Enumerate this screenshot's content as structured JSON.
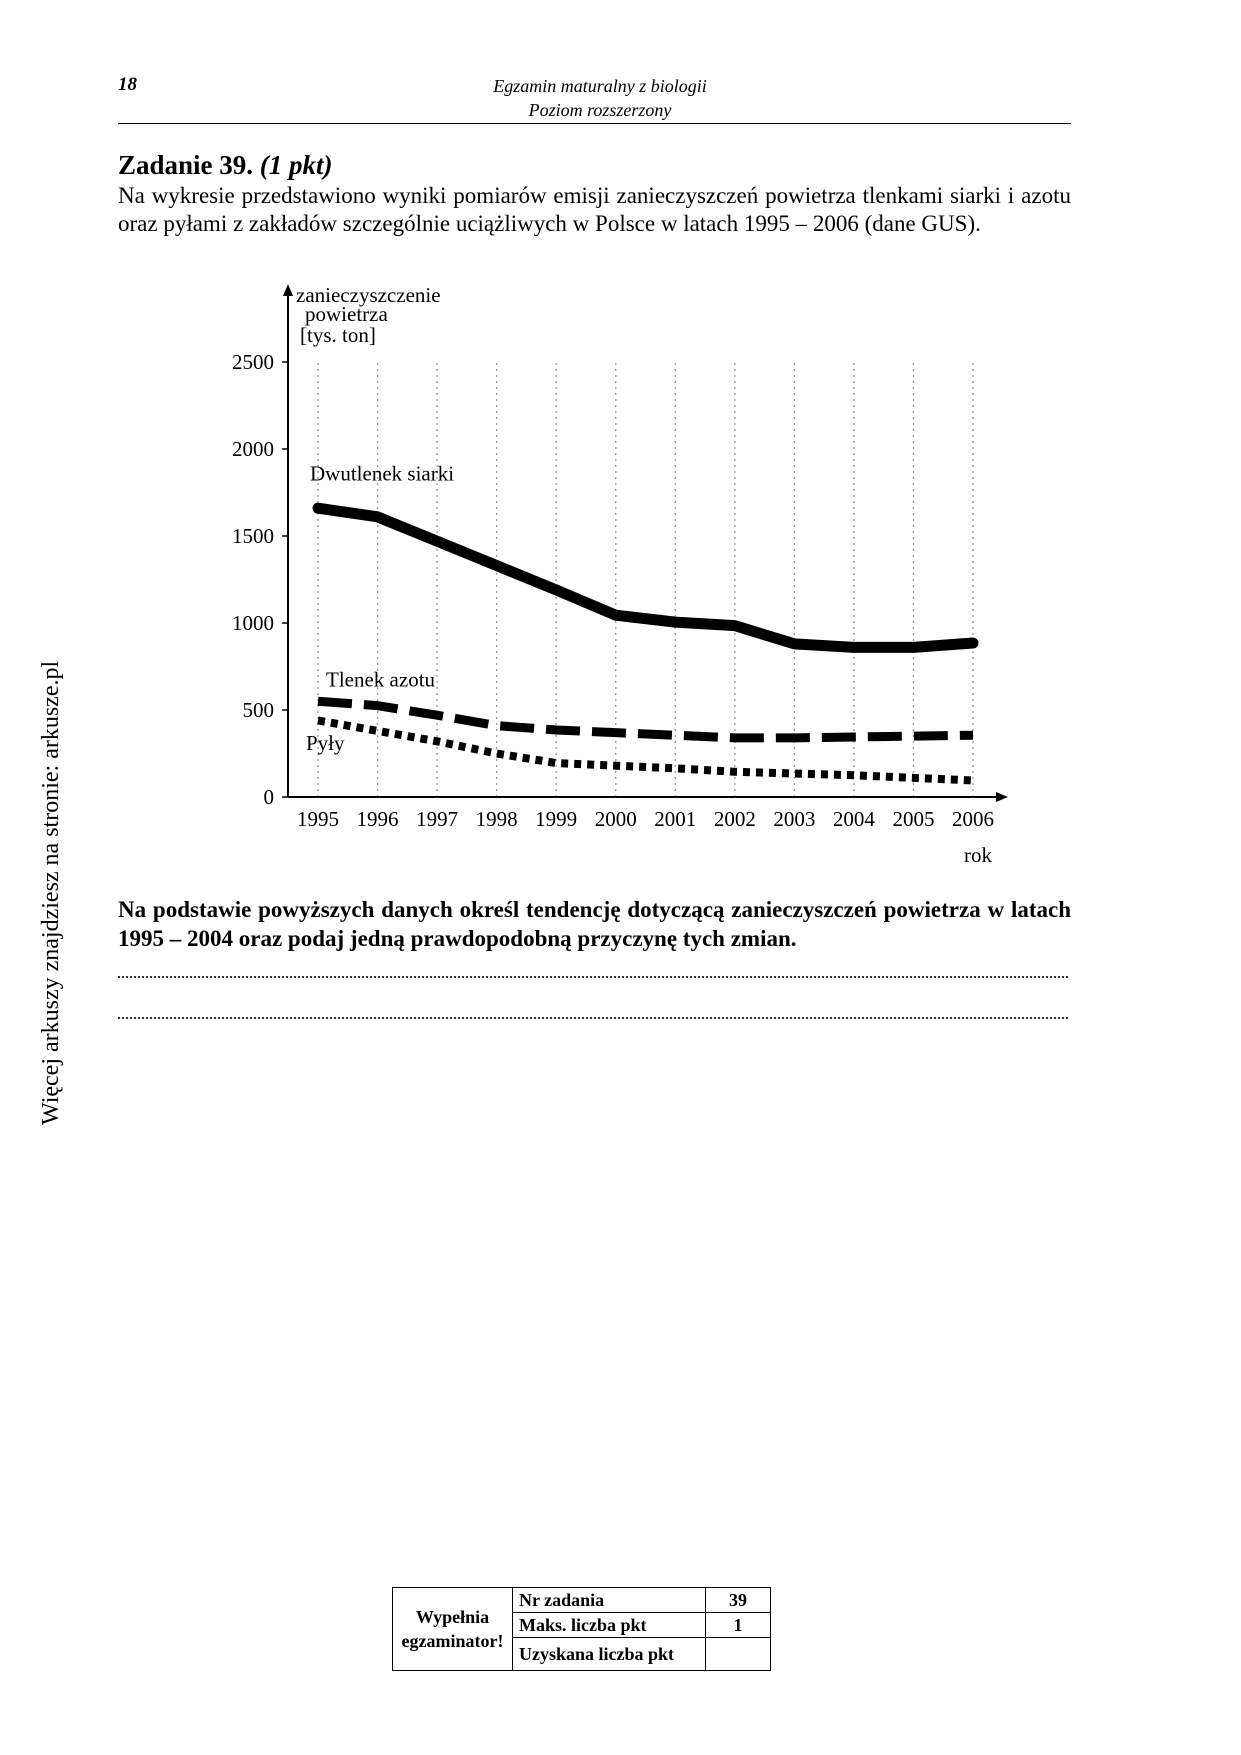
{
  "side_note": "Więcej arkuszy znajdziesz na stronie: arkusze.pl",
  "header": {
    "page_number": "18",
    "title": "Egzamin maturalny z biologii",
    "subtitle": "Poziom rozszerzony"
  },
  "task": {
    "title": "Zadanie 39.",
    "points": "(1 pkt)",
    "intro": "Na wykresie przedstawiono wyniki pomiarów emisji zanieczyszczeń powietrza tlenkami siarki i azotu oraz pyłami z zakładów szczególnie uciążliwych w Polsce w latach 1995 – 2006 (dane GUS).",
    "question": "Na podstawie powyższych danych określ tendencję dotyczącą zanieczyszczeń powietrza w latach 1995 – 2004 oraz podaj jedną prawdopodobną przyczynę tych zmian."
  },
  "chart_data": {
    "type": "line",
    "ylabel": [
      "zanieczyszczenie",
      "powietrza",
      "[tys. ton]"
    ],
    "xlabel": "rok",
    "x": [
      1995,
      1996,
      1997,
      1998,
      1999,
      2000,
      2001,
      2002,
      2003,
      2004,
      2005,
      2006
    ],
    "ylim": [
      0,
      2500
    ],
    "yticks": [
      0,
      500,
      1000,
      1500,
      2000,
      2500
    ],
    "grid": "vertical dotted",
    "series": [
      {
        "name": "Dwutlenek siarki",
        "style": "solid",
        "values": [
          1660,
          1610,
          1470,
          1330,
          1190,
          1045,
          1005,
          985,
          880,
          860,
          860,
          885
        ]
      },
      {
        "name": "Tlenek azotu",
        "style": "dashed",
        "values": [
          550,
          525,
          470,
          410,
          385,
          370,
          355,
          340,
          340,
          345,
          350,
          355
        ]
      },
      {
        "name": "Pyły",
        "style": "dotted",
        "values": [
          440,
          380,
          320,
          250,
          195,
          180,
          165,
          145,
          135,
          125,
          110,
          95
        ]
      }
    ]
  },
  "grading_table": {
    "fill_label_1": "Wypełnia",
    "fill_label_2": "egzaminator!",
    "rows": [
      {
        "label": "Nr zadania",
        "value": "39"
      },
      {
        "label": "Maks. liczba pkt",
        "value": "1"
      },
      {
        "label": "Uzyskana liczba pkt",
        "value": ""
      }
    ]
  }
}
